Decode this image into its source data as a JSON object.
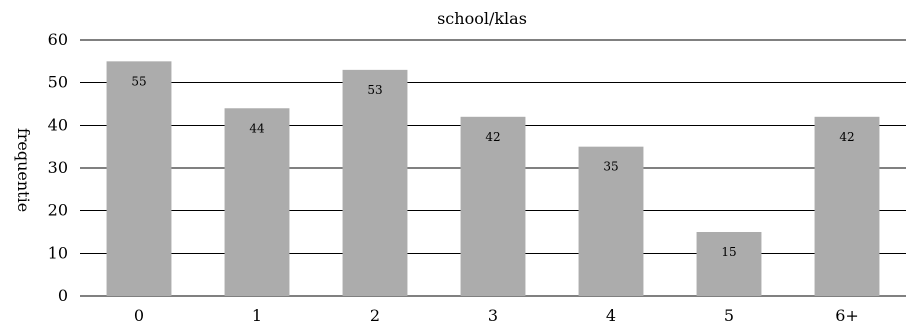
{
  "chart_data": {
    "type": "bar",
    "title": "school/klas",
    "xlabel": "",
    "ylabel": "frequentie",
    "categories": [
      "0",
      "1",
      "2",
      "3",
      "4",
      "5",
      "6+"
    ],
    "values": [
      55,
      44,
      53,
      42,
      35,
      15,
      42
    ],
    "ylim": [
      0,
      60
    ],
    "yticks": [
      0,
      10,
      20,
      30,
      40,
      50,
      60
    ],
    "grid": true,
    "legend": "none",
    "bar_color": "#acacac",
    "grid_color": "#000000"
  }
}
